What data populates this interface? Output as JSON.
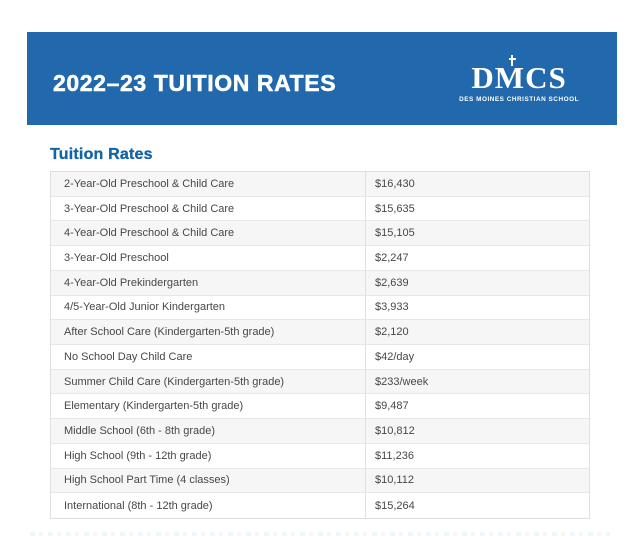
{
  "banner": {
    "title": "2022–23 TUITION RATES",
    "logo": {
      "acronym": "DMCS",
      "subtitle": "DES MOINES CHRISTIAN SCHOOL"
    }
  },
  "section": {
    "heading": "Tuition Rates"
  },
  "table": {
    "rows": [
      {
        "label": "2-Year-Old Preschool & Child Care",
        "value": "$16,430"
      },
      {
        "label": "3-Year-Old Preschool & Child Care",
        "value": "$15,635"
      },
      {
        "label": "4-Year-Old Preschool & Child Care",
        "value": "$15,105"
      },
      {
        "label": "3-Year-Old Preschool",
        "value": "$2,247"
      },
      {
        "label": "4-Year-Old Prekindergarten",
        "value": "$2,639"
      },
      {
        "label": "4/5-Year-Old Junior Kindergarten",
        "value": "$3,933"
      },
      {
        "label": "After School Care (Kindergarten-5th grade)",
        "value": "$2,120"
      },
      {
        "label": "No School Day Child Care",
        "value": "$42/day"
      },
      {
        "label": "Summer Child Care (Kindergarten-5th grade)",
        "value": "$233/week"
      },
      {
        "label": "Elementary (Kindergarten-5th grade)",
        "value": "$9,487"
      },
      {
        "label": "Middle School (6th - 8th grade)",
        "value": "$10,812"
      },
      {
        "label": "High School (9th - 12th grade)",
        "value": "$11,236"
      },
      {
        "label": "High School Part Time (4 classes)",
        "value": "$10,112"
      },
      {
        "label": "International (8th - 12th grade)",
        "value": "$15,264"
      }
    ]
  },
  "colors": {
    "banner-blue": "#2268ad",
    "heading-blue": "#1263a7",
    "row-shade": "#f6f6f6",
    "row-border": "#e7e7e7",
    "table-border": "#dfdfdf",
    "cell-text": "#474747"
  }
}
